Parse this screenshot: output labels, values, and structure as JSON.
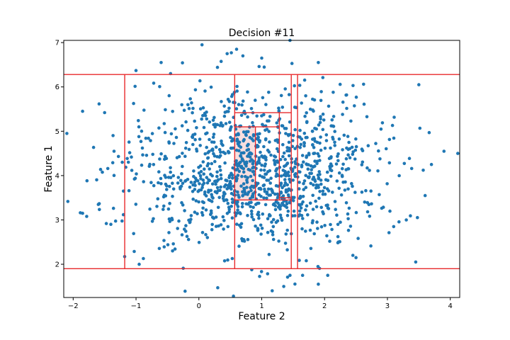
{
  "chart_data": {
    "type": "scatter",
    "title": "Decision #11",
    "xlabel": "Feature 2",
    "ylabel": "Feature 1",
    "xlim": [
      -2.15,
      4.15
    ],
    "ylim": [
      1.25,
      7.05
    ],
    "xticks": [
      -2,
      -1,
      0,
      1,
      2,
      3,
      4
    ],
    "yticks": [
      2,
      3,
      4,
      5,
      6,
      7
    ],
    "grid": false,
    "point_color": "#1f77b4",
    "line_color": "#e8292b",
    "highlight_color": "#f9dede",
    "point_cluster": {
      "center_x": 0.9,
      "center_y": 4.1,
      "std_x": 0.95,
      "std_y": 0.9,
      "count": 1200
    },
    "points": [
      {
        "x": -2.1,
        "y": 4.95
      },
      {
        "x": -1.85,
        "y": 5.45
      },
      {
        "x": -1.85,
        "y": 3.15
      },
      {
        "x": -1.6,
        "y": 3.35
      },
      {
        "x": -1.5,
        "y": 5.42
      },
      {
        "x": -1.4,
        "y": 2.9
      },
      {
        "x": -1.35,
        "y": 4.55
      },
      {
        "x": -1.2,
        "y": 3.65
      },
      {
        "x": -1.0,
        "y": 6.37
      },
      {
        "x": -0.95,
        "y": 2.0
      },
      {
        "x": -0.6,
        "y": 6.55
      },
      {
        "x": -0.45,
        "y": 6.3
      },
      {
        "x": 0.05,
        "y": 6.95
      },
      {
        "x": 0.3,
        "y": 1.47
      },
      {
        "x": 0.45,
        "y": 6.75
      },
      {
        "x": 0.6,
        "y": 6.85
      },
      {
        "x": 0.55,
        "y": 1.28
      },
      {
        "x": 0.7,
        "y": 6.7
      },
      {
        "x": 1.0,
        "y": 6.65
      },
      {
        "x": 1.35,
        "y": 1.5
      },
      {
        "x": 1.45,
        "y": 1.75
      },
      {
        "x": 1.45,
        "y": 7.05
      },
      {
        "x": 1.65,
        "y": 1.75
      },
      {
        "x": 1.9,
        "y": 1.55
      },
      {
        "x": 2.05,
        "y": 1.75
      },
      {
        "x": 1.9,
        "y": 6.55
      },
      {
        "x": 2.5,
        "y": 2.15
      },
      {
        "x": 3.45,
        "y": 2.05
      },
      {
        "x": 3.5,
        "y": 6.05
      },
      {
        "x": 3.7,
        "y": 4.25
      },
      {
        "x": 3.9,
        "y": 4.55
      },
      {
        "x": 4.12,
        "y": 4.5
      },
      {
        "x": 3.6,
        "y": 3.55
      },
      {
        "x": 3.1,
        "y": 2.85
      },
      {
        "x": 3.3,
        "y": 3.0
      },
      {
        "x": 2.45,
        "y": 2.2
      }
    ],
    "splits": [
      {
        "orientation": "horizontal",
        "value": 6.28,
        "from": -2.15,
        "to": 4.15
      },
      {
        "orientation": "horizontal",
        "value": 1.9,
        "from": -2.15,
        "to": 4.15
      },
      {
        "orientation": "vertical",
        "value": -1.18,
        "from": 1.9,
        "to": 6.28
      },
      {
        "orientation": "vertical",
        "value": 0.57,
        "from": 1.9,
        "to": 6.28
      },
      {
        "orientation": "vertical",
        "value": 1.47,
        "from": 1.9,
        "to": 6.28
      },
      {
        "orientation": "vertical",
        "value": 1.57,
        "from": 1.9,
        "to": 6.28
      },
      {
        "orientation": "horizontal",
        "value": 5.42,
        "from": 0.57,
        "to": 1.47
      },
      {
        "orientation": "horizontal",
        "value": 3.45,
        "from": 0.57,
        "to": 1.47
      },
      {
        "orientation": "vertical",
        "value": 1.28,
        "from": 3.45,
        "to": 5.42
      },
      {
        "orientation": "horizontal",
        "value": 5.1,
        "from": 0.57,
        "to": 1.28
      },
      {
        "orientation": "vertical",
        "value": 0.9,
        "from": 3.45,
        "to": 5.1
      },
      {
        "orientation": "horizontal",
        "value": 3.5,
        "from": 1.28,
        "to": 1.47
      }
    ],
    "highlight_region": {
      "x0": 0.57,
      "x1": 0.9,
      "y0": 3.45,
      "y1": 5.1
    }
  }
}
